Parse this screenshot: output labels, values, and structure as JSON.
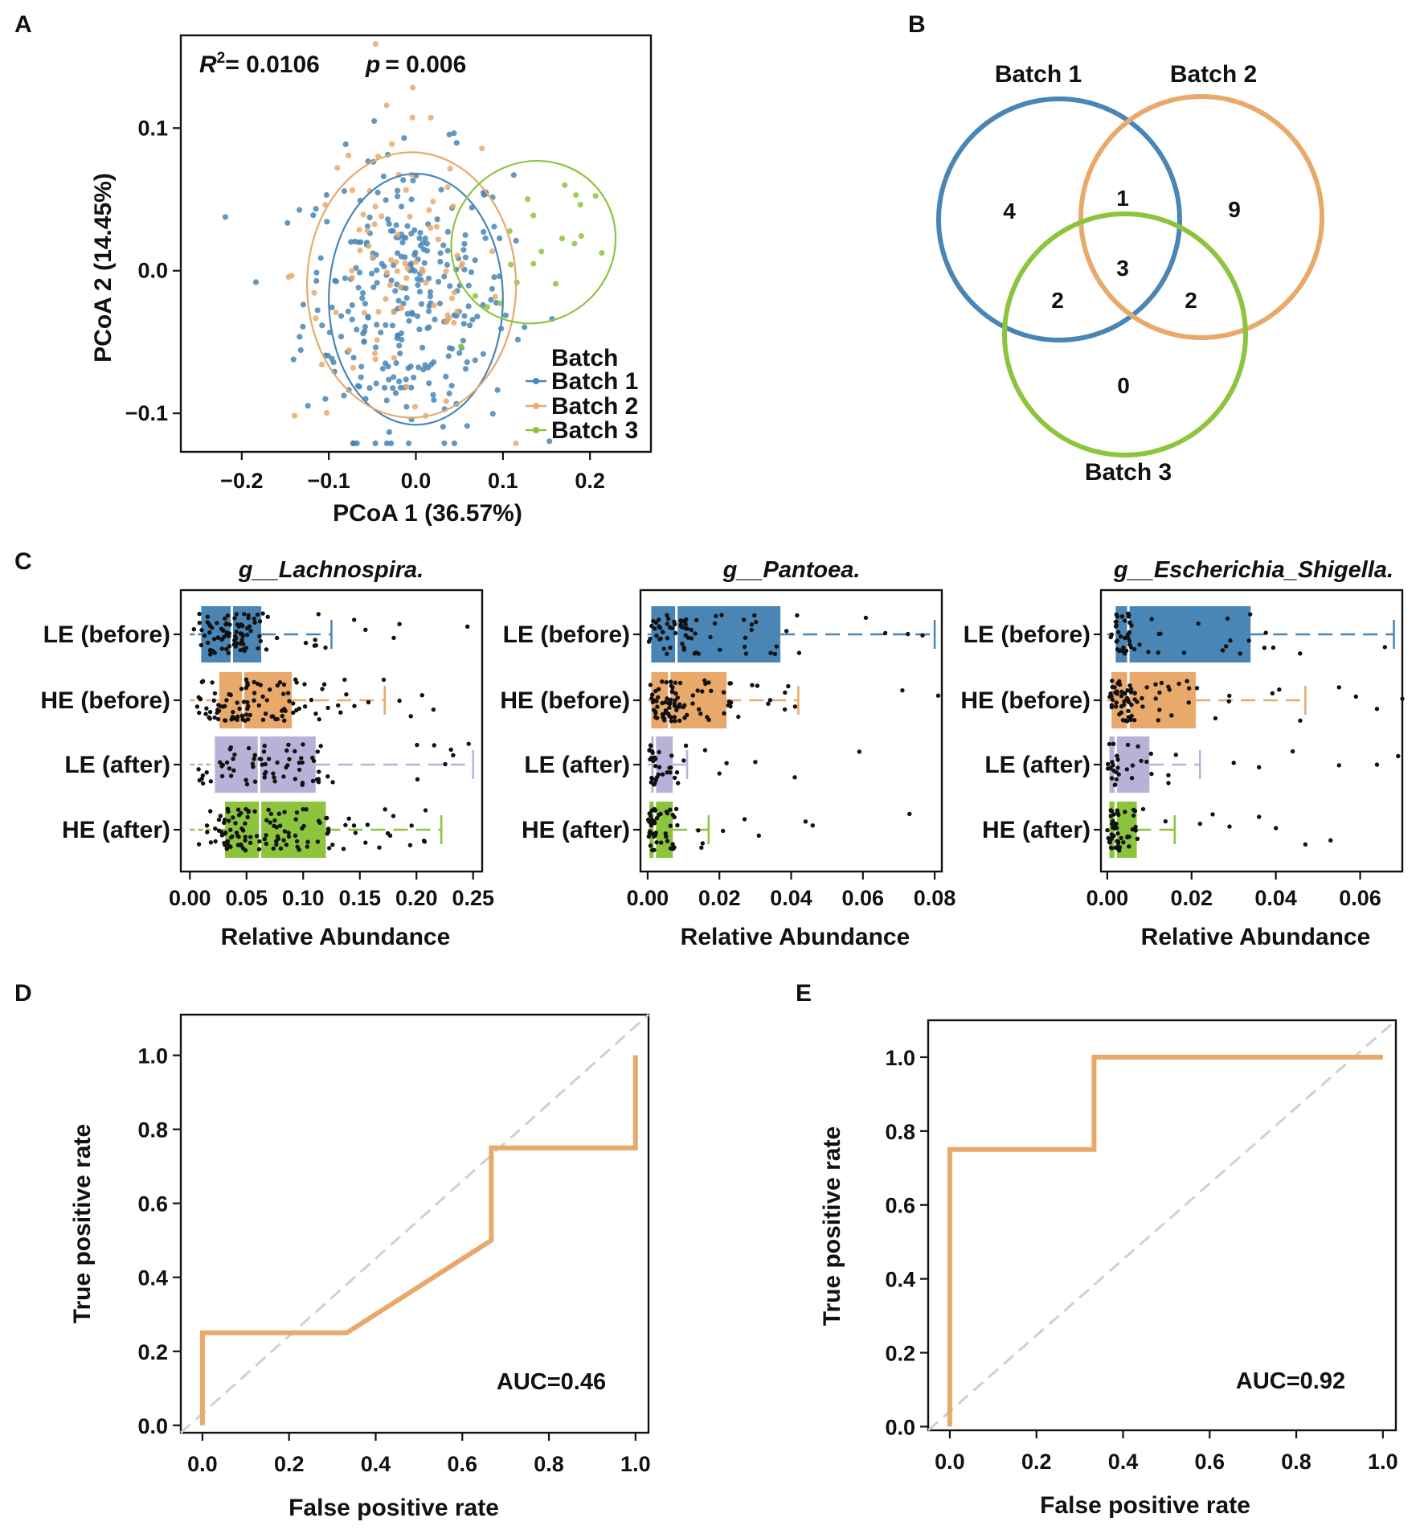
{
  "panels": {
    "A": {
      "label": "A"
    },
    "B": {
      "label": "B"
    },
    "C": {
      "label": "C"
    },
    "D": {
      "label": "D"
    },
    "E": {
      "label": "E"
    }
  },
  "colors": {
    "batch1": "#4a86b5",
    "batch2": "#e8a96b",
    "batch3": "#8dc43d",
    "violet": "#b8b2d8",
    "diagonal": "#d0d0d0",
    "roc": "#e8a96b"
  },
  "chart_data": [
    {
      "id": "A",
      "type": "scatter",
      "xlabel": "PCoA 1 (36.57%)",
      "ylabel": "PCoA 2 (14.45%)",
      "xlim": [
        -0.27,
        0.27
      ],
      "ylim": [
        -0.127,
        0.165
      ],
      "xticks": [
        -0.2,
        -0.1,
        0.0,
        0.1,
        0.2
      ],
      "xtick_labels": [
        "−0.2",
        "−0.1",
        "0.0",
        "0.1",
        "0.2"
      ],
      "yticks": [
        -0.1,
        0.0,
        0.1
      ],
      "ytick_labels": [
        "−0.1",
        "0.0",
        "0.1"
      ],
      "stat_r2_label": "R",
      "stat_r2_sup": "2",
      "stat_r2_value": "= 0.0106",
      "stat_p_label": "p",
      "stat_p_value": "= 0.006",
      "legend_title": "Batch",
      "legend": [
        "Batch 1",
        "Batch 2",
        "Batch 3"
      ],
      "series": [
        {
          "name": "Batch 1",
          "n": 300,
          "center": [
            -0.01,
            -0.02
          ],
          "spread": [
            0.06,
            0.05
          ]
        },
        {
          "name": "Batch 2",
          "n": 90,
          "center": [
            -0.02,
            0.0
          ],
          "spread": [
            0.06,
            0.055
          ]
        },
        {
          "name": "Batch 3",
          "n": 20,
          "center": [
            0.13,
            0.0
          ],
          "spread": [
            0.03,
            0.04
          ]
        }
      ],
      "ellipses": [
        {
          "series": "Batch 1",
          "cx": 0.0,
          "cy": -0.02,
          "rx": 0.1,
          "ry": 0.088,
          "angle": 0
        },
        {
          "series": "Batch 2",
          "cx": -0.005,
          "cy": -0.01,
          "rx": 0.12,
          "ry": 0.093,
          "angle": 0
        },
        {
          "series": "Batch 3",
          "cx": 0.135,
          "cy": 0.02,
          "rx": 0.096,
          "ry": 0.056,
          "angle": 38
        }
      ]
    },
    {
      "id": "B",
      "type": "venn",
      "sets": [
        "Batch 1",
        "Batch 2",
        "Batch 3"
      ],
      "regions": {
        "only1": "4",
        "only2": "9",
        "only3": "0",
        "b12": "1",
        "b13": "2",
        "b23": "2",
        "b123": "3"
      }
    },
    {
      "id": "C1",
      "type": "boxplot",
      "title": "g__Lachnospira.",
      "xlabel": "Relative Abundance",
      "xlim": [
        -0.008,
        0.258
      ],
      "xticks": [
        0.0,
        0.05,
        0.1,
        0.15,
        0.2,
        0.25
      ],
      "xtick_labels": [
        "0.00",
        "0.05",
        "0.10",
        "0.15",
        "0.20",
        "0.25"
      ],
      "categories": [
        "LE (before)",
        "HE (before)",
        "LE (after)",
        "HE (after)"
      ],
      "boxes": [
        {
          "q1": 0.01,
          "median": 0.037,
          "q3": 0.063,
          "wlo": 0.0,
          "whi": 0.125,
          "n": 90,
          "outliers": [
            0.145,
            0.155,
            0.18,
            0.185,
            0.245
          ]
        },
        {
          "q1": 0.026,
          "median": 0.047,
          "q3": 0.09,
          "wlo": 0.0,
          "whi": 0.172,
          "n": 100,
          "outliers": [
            0.185,
            0.195,
            0.205,
            0.215
          ]
        },
        {
          "q1": 0.022,
          "median": 0.061,
          "q3": 0.111,
          "wlo": 0.0,
          "whi": 0.25,
          "n": 75,
          "outliers": []
        },
        {
          "q1": 0.031,
          "median": 0.062,
          "q3": 0.12,
          "wlo": 0.0,
          "whi": 0.222,
          "n": 120,
          "outliers": []
        }
      ]
    },
    {
      "id": "C2",
      "type": "boxplot",
      "title": "g__Pantoea.",
      "xlabel": "Relative Abundance",
      "xlim": [
        -0.002,
        0.082
      ],
      "xticks": [
        0.0,
        0.02,
        0.04,
        0.06,
        0.08
      ],
      "xtick_labels": [
        "0.00",
        "0.02",
        "0.04",
        "0.06",
        "0.08"
      ],
      "categories": [
        "LE (before)",
        "HE (before)",
        "LE (after)",
        "HE (after)"
      ],
      "boxes": [
        {
          "q1": 0.001,
          "median": 0.008,
          "q3": 0.037,
          "wlo": 0.0,
          "whi": 0.08,
          "n": 70,
          "outliers": []
        },
        {
          "q1": 0.001,
          "median": 0.006,
          "q3": 0.022,
          "wlo": 0.0,
          "whi": 0.042,
          "n": 90,
          "outliers": [
            0.071,
            0.081
          ]
        },
        {
          "q1": 0.001,
          "median": 0.002,
          "q3": 0.007,
          "wlo": 0.0,
          "whi": 0.011,
          "n": 35,
          "outliers": [
            0.016,
            0.02,
            0.022,
            0.03,
            0.041,
            0.059
          ]
        },
        {
          "q1": 0.0005,
          "median": 0.002,
          "q3": 0.007,
          "wlo": 0.0,
          "whi": 0.017,
          "n": 50,
          "outliers": [
            0.021,
            0.027,
            0.031,
            0.044,
            0.046,
            0.073
          ]
        }
      ]
    },
    {
      "id": "C3",
      "type": "boxplot",
      "title": "g__Escherichia_Shigella.",
      "xlabel": "Relative Abundance",
      "xlim": [
        -0.0015,
        0.07
      ],
      "xticks": [
        0.0,
        0.02,
        0.04,
        0.06
      ],
      "xtick_labels": [
        "0.00",
        "0.02",
        "0.04",
        "0.06"
      ],
      "categories": [
        "LE (before)",
        "HE (before)",
        "LE (after)",
        "HE (after)"
      ],
      "boxes": [
        {
          "q1": 0.002,
          "median": 0.005,
          "q3": 0.034,
          "wlo": 0.0,
          "whi": 0.068,
          "n": 55,
          "outliers": []
        },
        {
          "q1": 0.001,
          "median": 0.005,
          "q3": 0.021,
          "wlo": 0.0,
          "whi": 0.047,
          "n": 70,
          "outliers": [
            0.055,
            0.059,
            0.064,
            0.07
          ]
        },
        {
          "q1": 0.0005,
          "median": 0.002,
          "q3": 0.01,
          "wlo": 0.0,
          "whi": 0.022,
          "n": 30,
          "outliers": [
            0.03,
            0.036,
            0.044,
            0.055,
            0.064,
            0.069
          ]
        },
        {
          "q1": 0.0005,
          "median": 0.002,
          "q3": 0.007,
          "wlo": 0.0,
          "whi": 0.016,
          "n": 50,
          "outliers": [
            0.022,
            0.025,
            0.029,
            0.036,
            0.04,
            0.047,
            0.053
          ]
        }
      ]
    },
    {
      "id": "D",
      "type": "line",
      "xlabel": "False positive rate",
      "ylabel": "True positive rate",
      "xlim": [
        -0.05,
        1.03
      ],
      "ylim": [
        -0.02,
        1.11
      ],
      "xticks": [
        0.0,
        0.2,
        0.4,
        0.6,
        0.8,
        1.0
      ],
      "xtick_labels": [
        "0.0",
        "0.2",
        "0.4",
        "0.6",
        "0.8",
        "1.0"
      ],
      "yticks": [
        0.0,
        0.2,
        0.4,
        0.6,
        0.8,
        1.0
      ],
      "ytick_labels": [
        "0.0",
        "0.2",
        "0.4",
        "0.6",
        "0.8",
        "1.0"
      ],
      "x": [
        0.0,
        0.0,
        0.333,
        0.667,
        0.667,
        1.0,
        1.0
      ],
      "y": [
        0.0,
        0.25,
        0.25,
        0.5,
        0.75,
        0.75,
        1.0
      ],
      "annotation": "AUC=0.46"
    },
    {
      "id": "E",
      "type": "line",
      "xlabel": "False positive rate",
      "ylabel": "True positive rate",
      "xlim": [
        -0.05,
        1.03
      ],
      "ylim": [
        -0.01,
        1.1
      ],
      "xticks": [
        0.0,
        0.2,
        0.4,
        0.6,
        0.8,
        1.0
      ],
      "xtick_labels": [
        "0.0",
        "0.2",
        "0.4",
        "0.6",
        "0.8",
        "1.0"
      ],
      "yticks": [
        0.0,
        0.2,
        0.4,
        0.6,
        0.8,
        1.0
      ],
      "ytick_labels": [
        "0.0",
        "0.2",
        "0.4",
        "0.6",
        "0.8",
        "1.0"
      ],
      "x": [
        0.0,
        0.0,
        0.333,
        0.333,
        1.0
      ],
      "y": [
        0.0,
        0.75,
        0.75,
        1.0,
        1.0
      ],
      "annotation": "AUC=0.92"
    }
  ]
}
